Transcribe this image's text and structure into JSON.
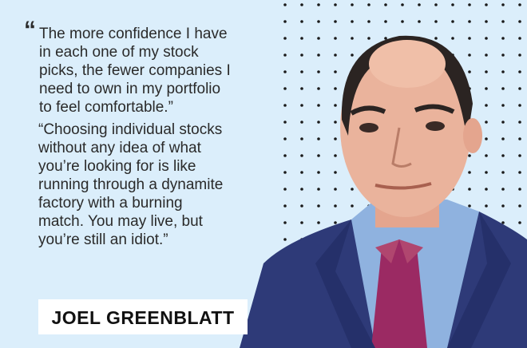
{
  "quote_mark": "“",
  "quotes": [
    {
      "lines": [
        "The more confidence I have",
        "in each one of my stock",
        "picks, the fewer companies I",
        "need to own in my portfolio",
        "to feel comfortable.”"
      ]
    },
    {
      "lines": [
        "“Choosing individual stocks",
        "without any idea of what",
        "you’re looking for is like",
        "running through a dynamite",
        "factory with a burning",
        "match. You may live, but",
        "you’re still an idiot.”"
      ]
    }
  ],
  "name": "JOEL GREENBLATT"
}
